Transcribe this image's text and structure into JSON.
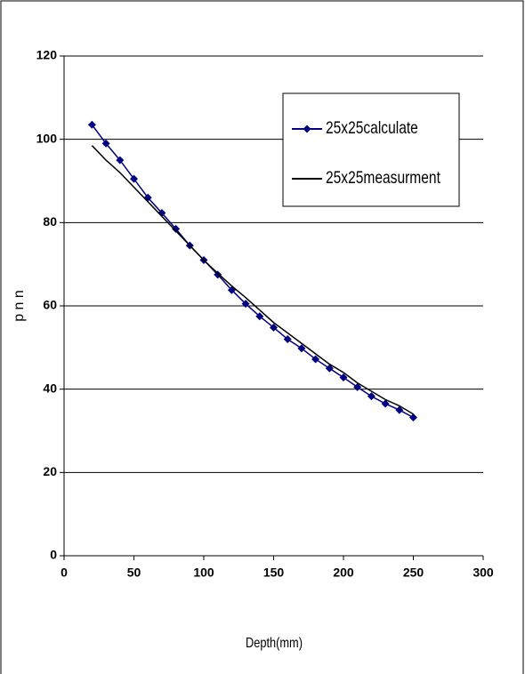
{
  "chart_data": {
    "type": "line",
    "x_label": "Depth(mm)",
    "y_label": "p n n",
    "x": [
      20,
      30,
      40,
      50,
      60,
      70,
      80,
      90,
      100,
      110,
      120,
      130,
      140,
      150,
      160,
      170,
      180,
      190,
      200,
      210,
      220,
      230,
      240,
      250
    ],
    "series": [
      {
        "name": "25x25calculate",
        "color": "#000080",
        "marker": "diamond",
        "values": [
          103.5,
          99,
          95,
          90.5,
          86,
          82.3,
          78.5,
          74.5,
          71,
          67.5,
          63.8,
          60.5,
          57.5,
          54.8,
          52,
          49.8,
          47.2,
          45,
          42.8,
          40.5,
          38.3,
          36.5,
          35,
          33.2
        ]
      },
      {
        "name": "25x25measurment",
        "color": "#000000",
        "values": [
          98.5,
          95,
          92,
          88.5,
          85,
          81.5,
          78,
          74.5,
          71,
          67.8,
          64.8,
          62,
          59,
          56,
          53.5,
          51,
          48.5,
          46,
          44,
          41.5,
          39.5,
          37.5,
          36,
          34
        ]
      }
    ],
    "xlim": [
      0,
      300
    ],
    "xticks": [
      0,
      50,
      100,
      150,
      200,
      250,
      300
    ],
    "ylim": [
      0,
      120
    ],
    "yticks": [
      0,
      20,
      40,
      60,
      80,
      100,
      120
    ],
    "grid": true,
    "legend": "upper right"
  }
}
